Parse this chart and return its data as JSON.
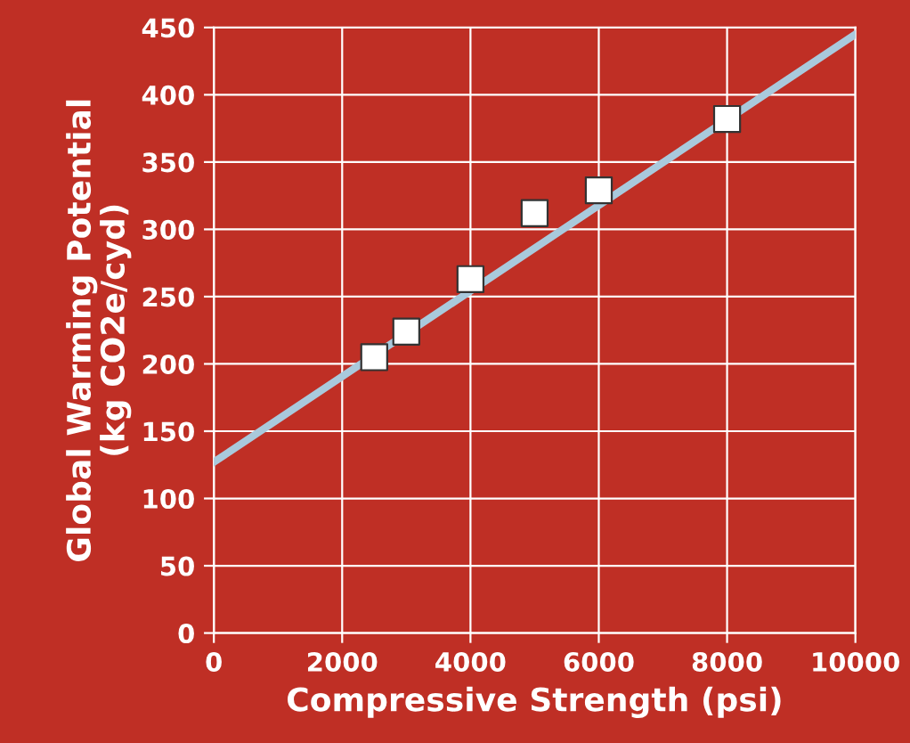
{
  "chart_data": {
    "type": "scatter",
    "xlabel": "Compressive Strength (psi)",
    "ylabel": "Global Warming Potential\n(kg CO2e/cyd)",
    "xlim": [
      0,
      10000
    ],
    "xticks": [
      0,
      2000,
      4000,
      6000,
      8000,
      10000
    ],
    "ylim": [
      0,
      450
    ],
    "yticks": [
      0,
      50,
      100,
      150,
      200,
      250,
      300,
      350,
      400,
      450
    ],
    "grid": true,
    "series": [
      {
        "type": "line",
        "color": "#a9c9dc",
        "x": [
          0,
          10000
        ],
        "values": [
          127,
          445
        ],
        "marker": "none",
        "line_style": "solid"
      },
      {
        "color": "#ffffff",
        "x": [
          2500,
          3000,
          4000,
          5000,
          6000,
          8000
        ],
        "values": [
          205,
          224,
          263,
          312,
          329,
          382
        ],
        "marker": "square"
      }
    ]
  }
}
